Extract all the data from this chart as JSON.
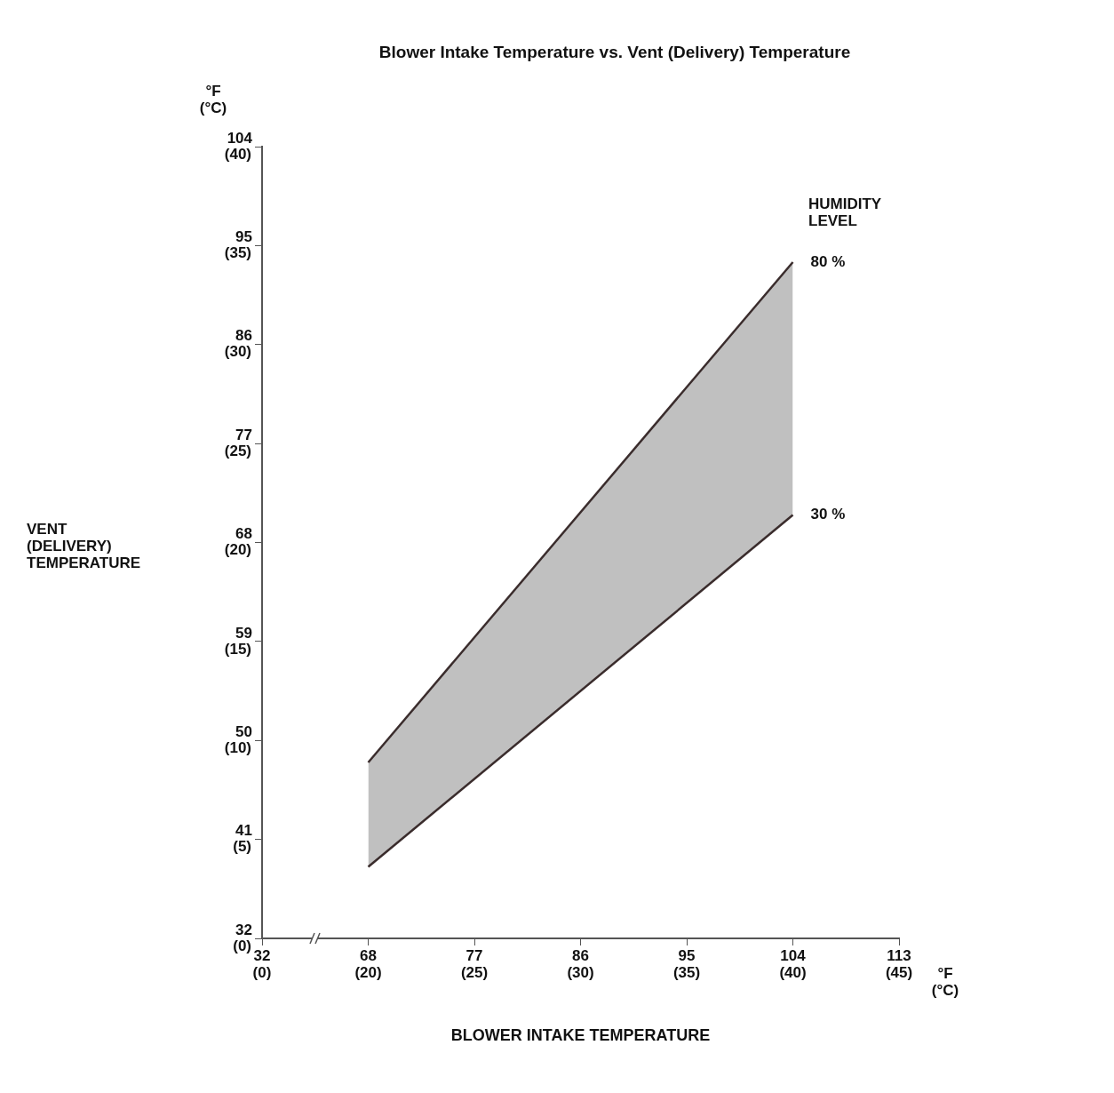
{
  "chart_data": {
    "type": "line",
    "title": "Blower Intake Temperature vs. Vent (Delivery) Temperature",
    "xlabel": "BLOWER INTAKE TEMPERATURE",
    "legend_title": "HUMIDITY\nLEVEL",
    "categories": [
      "32\n(0)",
      "68\n(20)",
      "77\n(25)",
      "86\n(30)",
      "95\n(35)",
      "104\n(40)",
      "113\n(45)"
    ],
    "series": [
      {
        "name": "80 %",
        "color": "#3a2c2c",
        "values": [
          null,
          48,
          null,
          null,
          null,
          93.5,
          null
        ],
        "lower": [
          null,
          38.5,
          null,
          null,
          null,
          70.5,
          null
        ],
        "upper": [
          null,
          48,
          null,
          null,
          null,
          93.5,
          null
        ]
      },
      {
        "name": "30 %",
        "color": "#3a2c2c",
        "values": [
          null,
          38.5,
          null,
          null,
          null,
          70.5,
          null
        ]
      }
    ],
    "ylim": [
      32,
      104
    ],
    "yticks": [
      32,
      41,
      50,
      59,
      68,
      77,
      86,
      95,
      104
    ],
    "y2lim": [
      0,
      40
    ],
    "y2ticks": [
      {
        "value": 0,
        "label": "(0)"
      },
      {
        "value": 5,
        "label": "(5)"
      },
      {
        "value": 10,
        "label": "(10)"
      },
      {
        "value": 15,
        "label": "(15)"
      },
      {
        "value": 20,
        "label": "(20)"
      },
      {
        "value": 25,
        "label": "(25)"
      },
      {
        "value": 30,
        "label": "(30)"
      },
      {
        "value": 35,
        "label": "(35)"
      },
      {
        "value": 40,
        "label": "(40)"
      }
    ],
    "annotations": [
      "°F\n(°C)",
      "°F\n(°C)",
      "VENT\n(DELIVERY)\nTEMPERATURE"
    ],
    "grid": false,
    "legend": false,
    "marker": "none",
    "line_style": "solid"
  }
}
